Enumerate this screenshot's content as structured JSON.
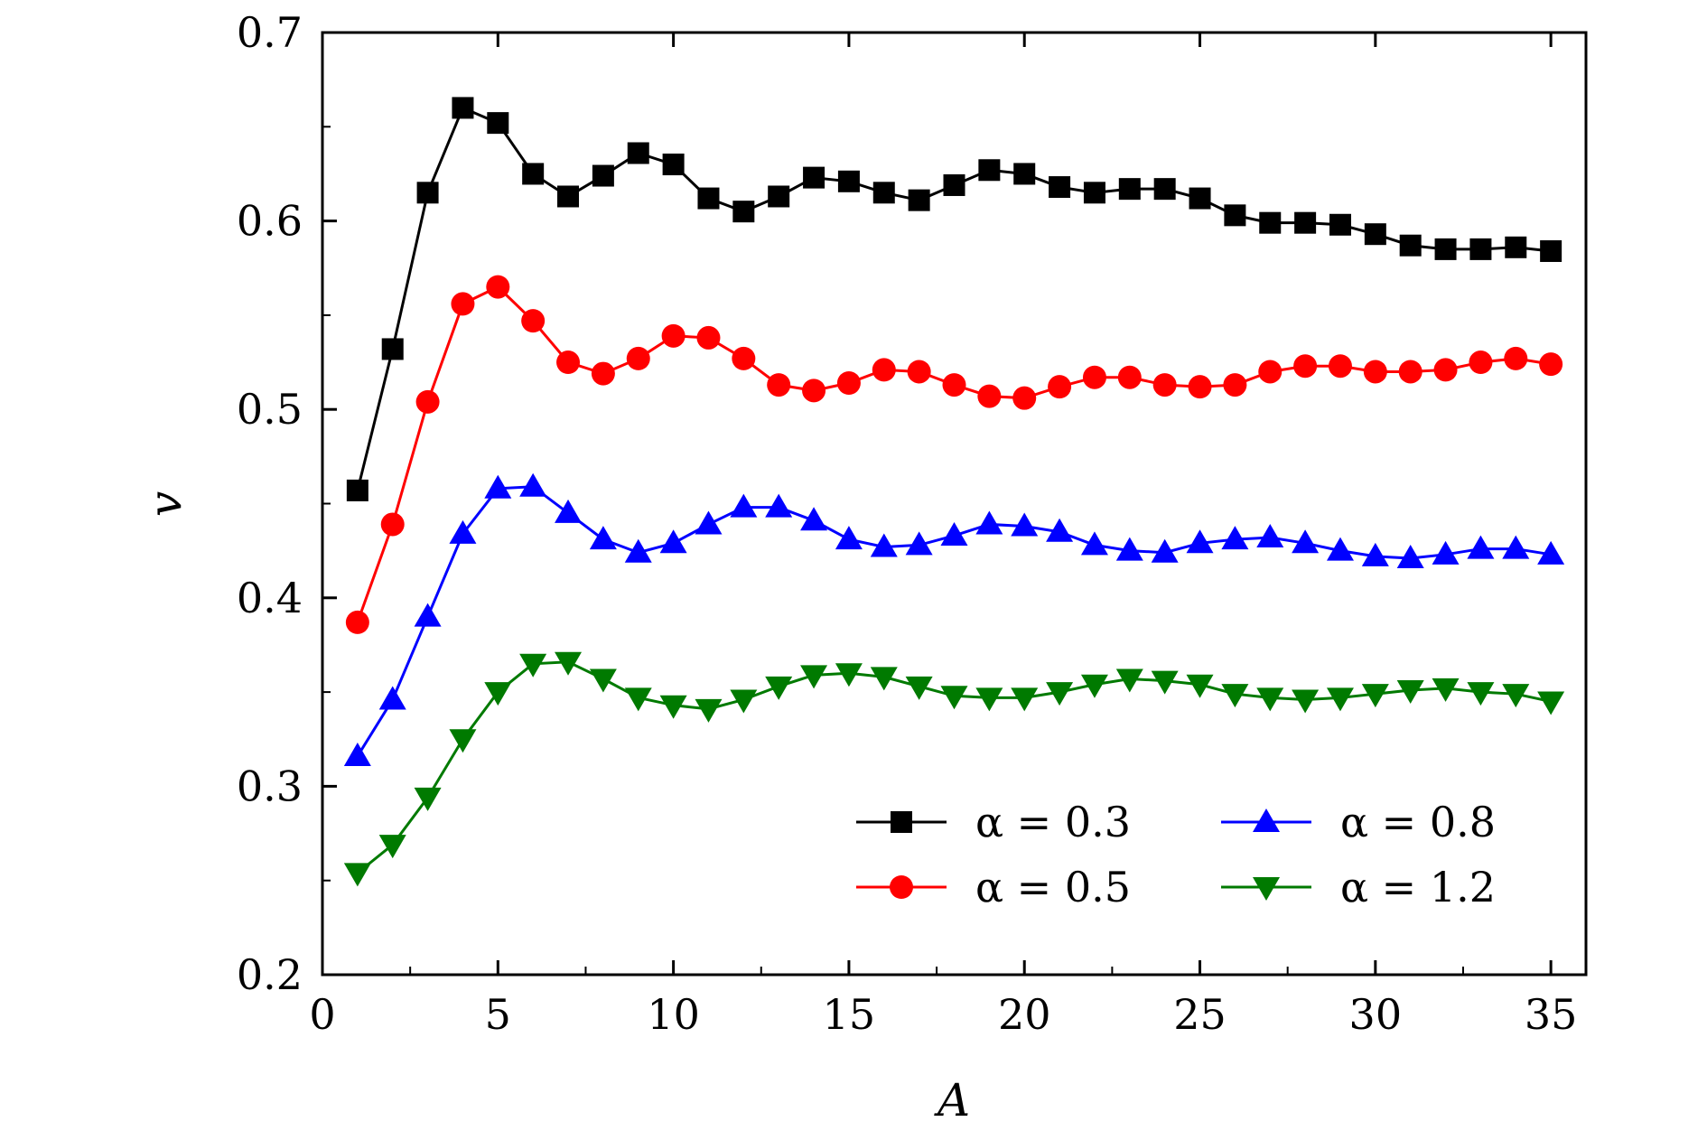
{
  "chart_data": {
    "type": "line",
    "title": "",
    "xlabel": "A",
    "ylabel": "v",
    "xlim": [
      0,
      36
    ],
    "ylim": [
      0.2,
      0.7
    ],
    "xticks": [
      0,
      5,
      10,
      15,
      20,
      25,
      30,
      35
    ],
    "xtick_labels": [
      "0",
      "5",
      "10",
      "15",
      "20",
      "25",
      "30",
      "35"
    ],
    "yticks": [
      0.2,
      0.3,
      0.4,
      0.5,
      0.6,
      0.7
    ],
    "ytick_labels": [
      "0.2",
      "0.3",
      "0.4",
      "0.5",
      "0.6",
      "0.7"
    ],
    "legend_position": "bottom-right",
    "x": [
      1,
      2,
      3,
      4,
      5,
      6,
      7,
      8,
      9,
      10,
      11,
      12,
      13,
      14,
      15,
      16,
      17,
      18,
      19,
      20,
      21,
      22,
      23,
      24,
      25,
      26,
      27,
      28,
      29,
      30,
      31,
      32,
      33,
      34,
      35
    ],
    "series": [
      {
        "name": "α = 0.3",
        "legend_label": "α = 0.3",
        "color": "#000000",
        "marker": "square",
        "values": [
          0.457,
          0.532,
          0.615,
          0.66,
          0.652,
          0.625,
          0.613,
          0.624,
          0.636,
          0.63,
          0.612,
          0.605,
          0.613,
          0.623,
          0.621,
          0.615,
          0.611,
          0.619,
          0.627,
          0.625,
          0.618,
          0.615,
          0.617,
          0.617,
          0.612,
          0.603,
          0.599,
          0.599,
          0.598,
          0.593,
          0.587,
          0.585,
          0.585,
          0.586,
          0.584
        ]
      },
      {
        "name": "α = 0.5",
        "legend_label": "α = 0.5",
        "color": "#ff0000",
        "marker": "circle",
        "values": [
          0.387,
          0.439,
          0.504,
          0.556,
          0.565,
          0.547,
          0.525,
          0.519,
          0.527,
          0.539,
          0.538,
          0.527,
          0.513,
          0.51,
          0.514,
          0.521,
          0.52,
          0.513,
          0.507,
          0.506,
          0.512,
          0.517,
          0.517,
          0.513,
          0.512,
          0.513,
          0.52,
          0.523,
          0.523,
          0.52,
          0.52,
          0.521,
          0.525,
          0.527,
          0.524
        ]
      },
      {
        "name": "α = 0.8",
        "legend_label": "α = 0.8",
        "color": "#0000ff",
        "marker": "triangle-up",
        "values": [
          0.316,
          0.346,
          0.39,
          0.434,
          0.458,
          0.459,
          0.445,
          0.431,
          0.424,
          0.429,
          0.439,
          0.448,
          0.448,
          0.441,
          0.431,
          0.427,
          0.428,
          0.433,
          0.439,
          0.438,
          0.435,
          0.428,
          0.425,
          0.424,
          0.429,
          0.431,
          0.432,
          0.429,
          0.425,
          0.422,
          0.421,
          0.423,
          0.426,
          0.426,
          0.423
        ]
      },
      {
        "name": "α = 1.2",
        "legend_label": "α = 1.2",
        "color": "#007a00",
        "marker": "triangle-down",
        "values": [
          0.254,
          0.269,
          0.294,
          0.325,
          0.35,
          0.365,
          0.366,
          0.357,
          0.347,
          0.343,
          0.341,
          0.346,
          0.353,
          0.359,
          0.36,
          0.358,
          0.353,
          0.348,
          0.347,
          0.347,
          0.35,
          0.354,
          0.357,
          0.356,
          0.354,
          0.349,
          0.347,
          0.346,
          0.347,
          0.349,
          0.351,
          0.352,
          0.35,
          0.349,
          0.345
        ]
      }
    ]
  }
}
